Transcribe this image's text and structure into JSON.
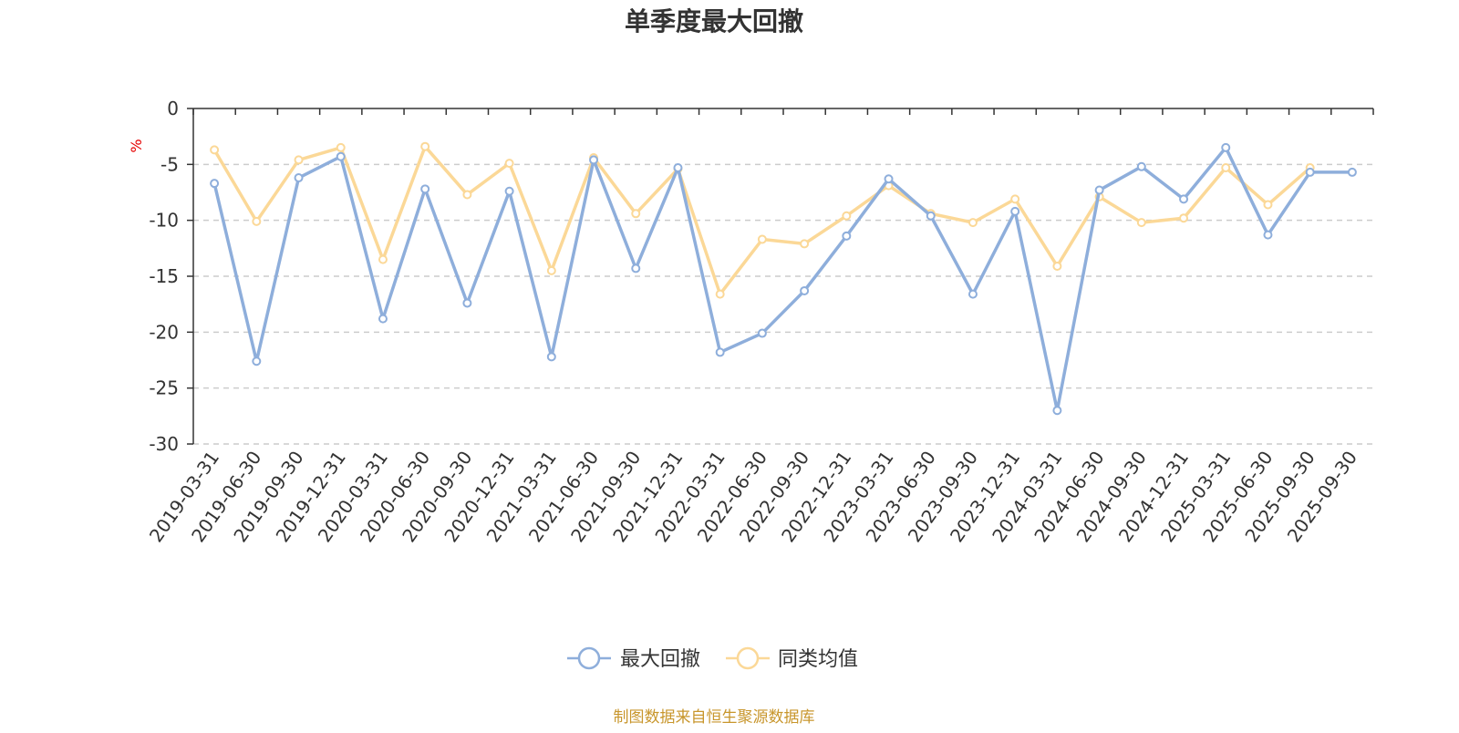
{
  "chart_data": {
    "type": "line",
    "title": "单季度最大回撤",
    "ylabel": "%",
    "ylim": [
      -30,
      0
    ],
    "yticks": [
      0,
      -5,
      -10,
      -15,
      -20,
      -25,
      -30
    ],
    "grid": true,
    "legend_position": "bottom-center",
    "categories": [
      "2019-03-31",
      "2019-06-30",
      "2019-09-30",
      "2019-12-31",
      "2020-03-31",
      "2020-06-30",
      "2020-09-30",
      "2020-12-31",
      "2021-03-31",
      "2021-06-30",
      "2021-09-30",
      "2021-12-31",
      "2022-03-31",
      "2022-06-30",
      "2022-09-30",
      "2022-12-31",
      "2023-03-31",
      "2023-06-30",
      "2023-09-30",
      "2023-12-31",
      "2024-03-31",
      "2024-06-30",
      "2024-09-30",
      "2024-12-31",
      "2025-03-31",
      "2025-06-30",
      "2025-09-30",
      "2025-09-30"
    ],
    "series": [
      {
        "name": "最大回撤",
        "color": "#8eaedb",
        "values": [
          -6.7,
          -22.6,
          -6.2,
          -4.3,
          -18.8,
          -7.2,
          -17.4,
          -7.4,
          -22.2,
          -4.6,
          -14.3,
          -5.3,
          -21.8,
          -20.1,
          -16.3,
          -11.4,
          -6.3,
          -9.6,
          -16.6,
          -9.2,
          -27.0,
          -7.3,
          -5.2,
          -8.1,
          -3.5,
          -11.3,
          -5.7,
          -5.7
        ]
      },
      {
        "name": "同类均值",
        "color": "#fbd897",
        "values": [
          -3.7,
          -10.1,
          -4.6,
          -3.5,
          -13.5,
          -3.4,
          -7.7,
          -4.9,
          -14.5,
          -4.4,
          -9.4,
          -5.4,
          -16.6,
          -11.7,
          -12.1,
          -9.6,
          -6.9,
          -9.4,
          -10.2,
          -8.1,
          -14.1,
          -7.9,
          -10.2,
          -9.8,
          -5.3,
          -8.6,
          -5.3,
          null
        ]
      }
    ]
  },
  "footer": {
    "source": "制图数据来自恒生聚源数据库"
  }
}
